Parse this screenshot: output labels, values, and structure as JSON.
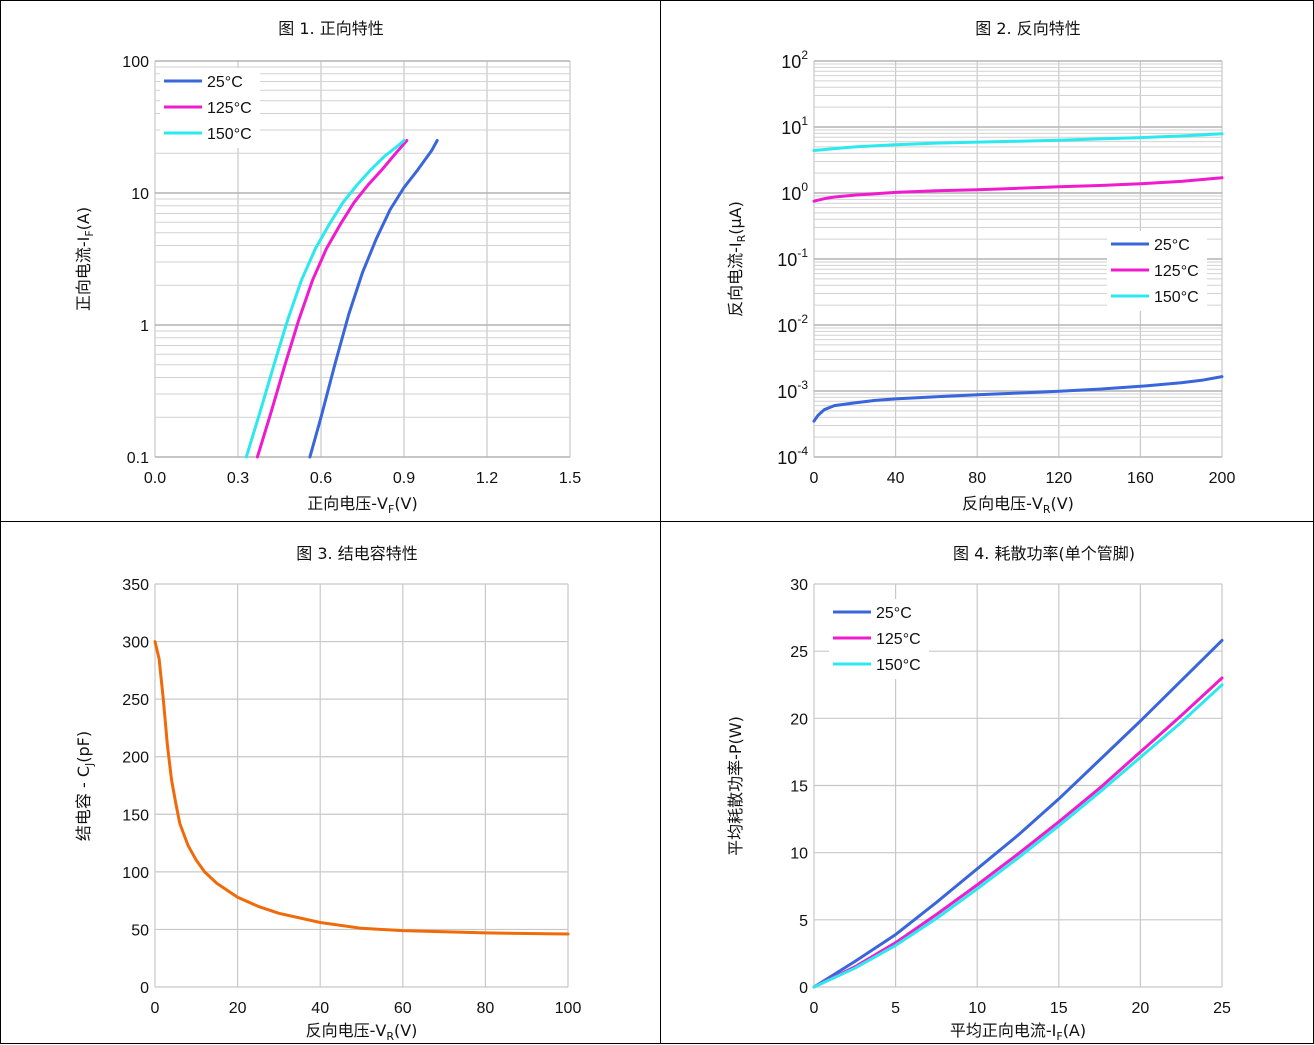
{
  "chart_data": [
    {
      "type": "line",
      "title": "图 1. 正向特性",
      "xlabel_main": "正向电压-V",
      "xlabel_sub": "F",
      "xlabel_tail": "(V)",
      "ylabel_main": "正向电流-I",
      "ylabel_sub": "F",
      "ylabel_tail": "(A)",
      "xlim": [
        0,
        1.5
      ],
      "ylim": [
        0.1,
        100
      ],
      "yscale": "log",
      "xticks": [
        "0.0",
        "0.3",
        "0.6",
        "0.9",
        "1.2",
        "1.5"
      ],
      "yticks": [
        "0.1",
        "1",
        "10",
        "100"
      ],
      "legend_position": "top-left",
      "series": [
        {
          "name": "25°C",
          "color": "#3A66DB",
          "x": [
            0.56,
            0.6,
            0.65,
            0.7,
            0.75,
            0.8,
            0.85,
            0.9,
            0.95,
            1.0,
            1.02
          ],
          "y": [
            0.1,
            0.2,
            0.5,
            1.2,
            2.5,
            4.5,
            7.5,
            11,
            15,
            21,
            25
          ]
        },
        {
          "name": "125°C",
          "color": "#EE1CCE",
          "x": [
            0.37,
            0.42,
            0.47,
            0.52,
            0.57,
            0.62,
            0.67,
            0.72,
            0.77,
            0.82,
            0.87,
            0.91
          ],
          "y": [
            0.1,
            0.22,
            0.5,
            1.1,
            2.2,
            3.8,
            5.8,
            8.5,
            11.5,
            15,
            20,
            25
          ]
        },
        {
          "name": "150°C",
          "color": "#2BE9EE",
          "x": [
            0.33,
            0.38,
            0.43,
            0.48,
            0.53,
            0.58,
            0.63,
            0.68,
            0.73,
            0.78,
            0.83,
            0.88,
            0.9
          ],
          "y": [
            0.1,
            0.22,
            0.5,
            1.1,
            2.2,
            3.8,
            5.8,
            8.5,
            11.5,
            15,
            19,
            23,
            25
          ]
        }
      ]
    },
    {
      "type": "line",
      "title": "图 2. 反向特性",
      "xlabel_main": "反向电压-V",
      "xlabel_sub": "R",
      "xlabel_tail": "(V)",
      "ylabel_main": "反向电流-I",
      "ylabel_sub": "R",
      "ylabel_tail": "(μA)",
      "xlim": [
        0,
        200
      ],
      "ylim": [
        0.0001,
        100
      ],
      "yscale": "log",
      "xticks": [
        "0",
        "40",
        "80",
        "120",
        "160",
        "200"
      ],
      "yticks": [
        {
          "base": "10",
          "exp": "-4"
        },
        {
          "base": "10",
          "exp": "-3"
        },
        {
          "base": "10",
          "exp": "-2"
        },
        {
          "base": "10",
          "exp": "-1"
        },
        {
          "base": "10",
          "exp": "0"
        },
        {
          "base": "10",
          "exp": "1"
        },
        {
          "base": "10",
          "exp": "2"
        }
      ],
      "legend_position": "center-right",
      "series": [
        {
          "name": "25°C",
          "color": "#3A66DB",
          "x": [
            0,
            2,
            5,
            10,
            20,
            30,
            40,
            60,
            80,
            100,
            120,
            140,
            160,
            180,
            190,
            200
          ],
          "y": [
            0.00035,
            0.00043,
            0.00052,
            0.0006,
            0.00066,
            0.00072,
            0.00076,
            0.00082,
            0.00088,
            0.00093,
            0.00099,
            0.00107,
            0.00118,
            0.00133,
            0.00145,
            0.00165
          ]
        },
        {
          "name": "125°C",
          "color": "#EE1CCE",
          "x": [
            0,
            5,
            10,
            20,
            40,
            60,
            80,
            100,
            120,
            140,
            160,
            180,
            200
          ],
          "y": [
            0.75,
            0.82,
            0.87,
            0.93,
            1.02,
            1.08,
            1.12,
            1.18,
            1.24,
            1.3,
            1.38,
            1.5,
            1.7
          ]
        },
        {
          "name": "150°C",
          "color": "#2BE9EE",
          "x": [
            0,
            10,
            20,
            40,
            60,
            80,
            100,
            120,
            140,
            160,
            180,
            200
          ],
          "y": [
            4.4,
            4.7,
            5.0,
            5.4,
            5.7,
            5.9,
            6.1,
            6.3,
            6.6,
            6.9,
            7.3,
            7.9
          ]
        }
      ]
    },
    {
      "type": "line",
      "title": "图 3. 结电容特性",
      "xlabel_main": "反向电压-V",
      "xlabel_sub": "R",
      "xlabel_tail": "(V)",
      "ylabel_main": "结电容 - C",
      "ylabel_sub": "J",
      "ylabel_tail": "(pF)",
      "xlim": [
        0,
        100
      ],
      "ylim": [
        0,
        350
      ],
      "xticks": [
        "0",
        "20",
        "40",
        "60",
        "80",
        "100"
      ],
      "yticks": [
        "0",
        "50",
        "100",
        "150",
        "200",
        "250",
        "300",
        "350"
      ],
      "series": [
        {
          "color": "#F06A0A",
          "x": [
            0,
            1,
            2,
            3,
            4,
            5,
            6,
            8,
            10,
            12,
            15,
            20,
            25,
            30,
            40,
            50,
            60,
            70,
            80,
            90,
            100
          ],
          "y": [
            300,
            285,
            250,
            210,
            180,
            160,
            142,
            123,
            110,
            100,
            90,
            78,
            70,
            64,
            56,
            51,
            49,
            48,
            47,
            46.5,
            46
          ]
        }
      ]
    },
    {
      "type": "line",
      "title": "图 4. 耗散功率(单个管脚)",
      "xlabel_main": "平均正向电流-I",
      "xlabel_sub": "F",
      "xlabel_tail": "(A)",
      "ylabel_main": "平均耗散功率-P(W)",
      "ylabel_sub": "",
      "ylabel_tail": "",
      "xlim": [
        0,
        25
      ],
      "ylim": [
        0,
        30
      ],
      "xticks": [
        "0",
        "5",
        "10",
        "15",
        "20",
        "25"
      ],
      "yticks": [
        "0",
        "5",
        "10",
        "15",
        "20",
        "25",
        "30"
      ],
      "legend_position": "top-left",
      "series": [
        {
          "name": "25°C",
          "color": "#3A66DB",
          "x": [
            0,
            2.5,
            5,
            7.5,
            10,
            12.5,
            15,
            17.5,
            20,
            22.5,
            25
          ],
          "y": [
            0,
            1.9,
            3.9,
            6.3,
            8.8,
            11.3,
            14.0,
            16.9,
            19.8,
            22.8,
            25.8
          ]
        },
        {
          "name": "125°C",
          "color": "#EE1CCE",
          "x": [
            0,
            2.5,
            5,
            7.5,
            10,
            12.5,
            15,
            17.5,
            20,
            22.5,
            25
          ],
          "y": [
            0,
            1.5,
            3.3,
            5.4,
            7.6,
            9.9,
            12.3,
            14.8,
            17.5,
            20.2,
            23.0
          ]
        },
        {
          "name": "150°C",
          "color": "#2BE9EE",
          "x": [
            0,
            2.5,
            5,
            7.5,
            10,
            12.5,
            15,
            17.5,
            20,
            22.5,
            25
          ],
          "y": [
            0,
            1.4,
            3.1,
            5.1,
            7.3,
            9.6,
            12.0,
            14.5,
            17.1,
            19.7,
            22.5
          ]
        }
      ]
    }
  ]
}
